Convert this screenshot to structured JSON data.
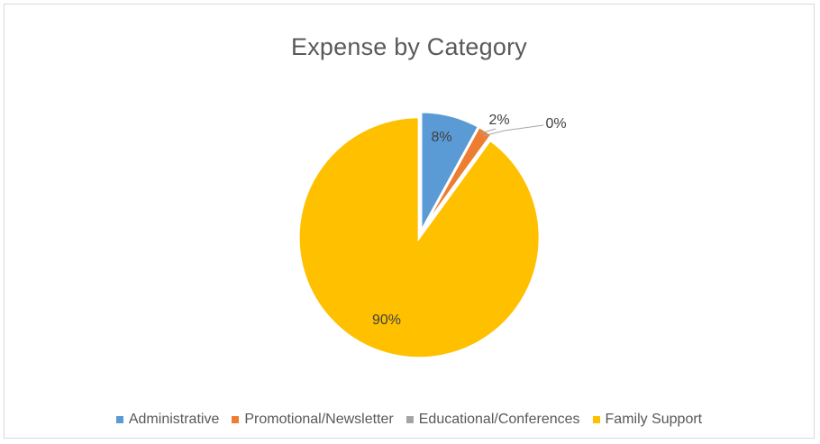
{
  "chart_data": {
    "type": "pie",
    "title": "Expense by Category",
    "categories": [
      "Administrative",
      "Promotional/Newsletter",
      "Educational/Conferences",
      "Family Support"
    ],
    "values": [
      8,
      2,
      0,
      90
    ],
    "labels": [
      "8%",
      "2%",
      "0%",
      "90%"
    ],
    "colors": [
      "#5b9bd5",
      "#ed7d31",
      "#a5a5a5",
      "#ffc000"
    ],
    "legend_position": "bottom"
  }
}
